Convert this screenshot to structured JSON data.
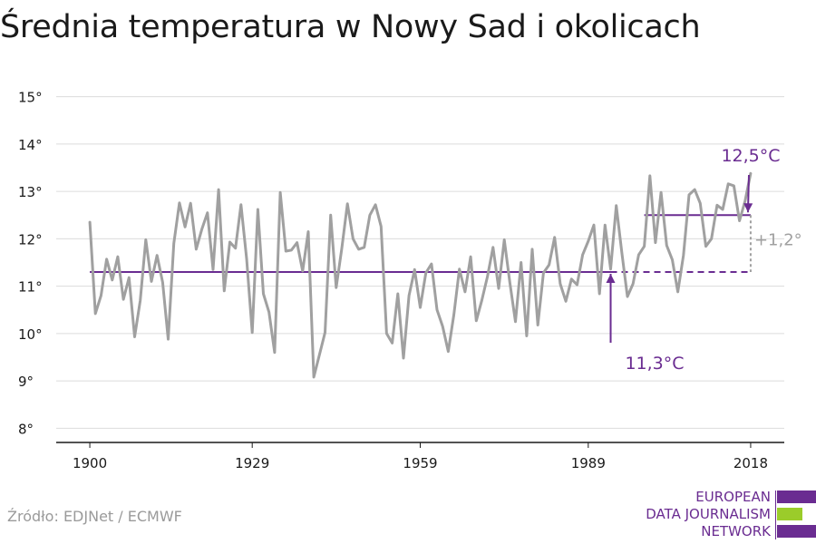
{
  "title": "Średnia temperatura w Nowy Sad i okolicach",
  "source": "Źródło: EDJNet / ECMWF",
  "logo": {
    "lines": [
      "EUROPEAN",
      "DATA JOURNALISM",
      "NETWORK"
    ],
    "colors": [
      "#6a2c91",
      "#9bcc2a",
      "#6a2c91"
    ]
  },
  "chart_data": {
    "type": "line",
    "y_ticks": [
      "8°",
      "9°",
      "10°",
      "11°",
      "12°",
      "13°",
      "14°",
      "15°"
    ],
    "y_tick_values": [
      8,
      9,
      10,
      11,
      12,
      13,
      14,
      15
    ],
    "x_ticks": [
      "1900",
      "1929",
      "1959",
      "1989",
      "2018"
    ],
    "x_tick_values": [
      1900,
      1929,
      1959,
      1989,
      2018
    ],
    "xlim": [
      1894,
      2024
    ],
    "ylim": [
      7.7,
      15.3
    ],
    "grid": true,
    "series": [
      {
        "color": "#a0a0a0",
        "x": [
          1900,
          1901,
          1902,
          1903,
          1904,
          1905,
          1906,
          1907,
          1908,
          1909,
          1910,
          1911,
          1912,
          1913,
          1914,
          1915,
          1916,
          1917,
          1918,
          1919,
          1920,
          1921,
          1922,
          1923,
          1924,
          1925,
          1926,
          1927,
          1928,
          1929,
          1930,
          1931,
          1932,
          1933,
          1934,
          1935,
          1936,
          1937,
          1938,
          1939,
          1940,
          1941,
          1942,
          1943,
          1944,
          1945,
          1946,
          1947,
          1948,
          1949,
          1950,
          1951,
          1952,
          1953,
          1954,
          1955,
          1956,
          1957,
          1958,
          1959,
          1960,
          1961,
          1962,
          1963,
          1964,
          1965,
          1966,
          1967,
          1968,
          1969,
          1970,
          1971,
          1972,
          1973,
          1974,
          1975,
          1976,
          1977,
          1978,
          1979,
          1980,
          1981,
          1982,
          1983,
          1984,
          1985,
          1986,
          1987,
          1988,
          1989,
          1990,
          1991,
          1992,
          1993,
          1994,
          1995,
          1996,
          1997,
          1998,
          1999,
          2000,
          2001,
          2002,
          2003,
          2004,
          2005,
          2006,
          2007,
          2008,
          2009,
          2010,
          2011,
          2012,
          2013,
          2014,
          2015,
          2016,
          2017,
          2018
        ],
        "values": [
          12.35,
          10.42,
          10.8,
          11.57,
          11.13,
          11.62,
          10.72,
          11.18,
          9.93,
          10.7,
          11.98,
          11.1,
          11.65,
          11.08,
          9.88,
          11.9,
          12.76,
          12.25,
          12.75,
          11.78,
          12.2,
          12.55,
          11.35,
          13.04,
          10.9,
          11.93,
          11.8,
          12.72,
          11.58,
          10.02,
          12.62,
          10.84,
          10.45,
          9.6,
          12.98,
          11.74,
          11.76,
          11.92,
          11.32,
          12.15,
          9.08,
          9.55,
          10.02,
          12.5,
          10.97,
          11.8,
          12.74,
          12.0,
          11.78,
          11.82,
          12.5,
          12.72,
          12.26,
          10.0,
          9.8,
          10.84,
          9.48,
          10.8,
          11.35,
          10.55,
          11.28,
          11.47,
          10.5,
          10.15,
          9.62,
          10.4,
          11.36,
          10.88,
          11.62,
          10.27,
          10.7,
          11.2,
          11.82,
          10.95,
          11.98,
          11.08,
          10.25,
          11.5,
          9.95,
          11.78,
          10.18,
          11.28,
          11.45,
          12.03,
          11.05,
          10.68,
          11.15,
          11.03,
          11.66,
          11.95,
          12.29,
          10.84,
          12.29,
          11.36,
          12.7,
          11.7,
          10.78,
          11.05,
          11.66,
          11.84,
          13.33,
          11.92,
          12.98,
          11.86,
          11.56,
          10.88,
          11.65,
          12.93,
          13.04,
          12.75,
          11.84,
          12.0,
          12.71,
          12.62,
          13.16,
          13.12,
          12.38,
          12.8,
          13.38
        ]
      }
    ],
    "baseline": {
      "value": 11.3,
      "label": "11,3°C",
      "color": "#6a2c91"
    },
    "recent": {
      "value": 12.5,
      "label": "12,5°C",
      "color": "#6a2c91"
    },
    "difference": {
      "label": "+1,2°",
      "color": "#a0a0a0"
    }
  }
}
